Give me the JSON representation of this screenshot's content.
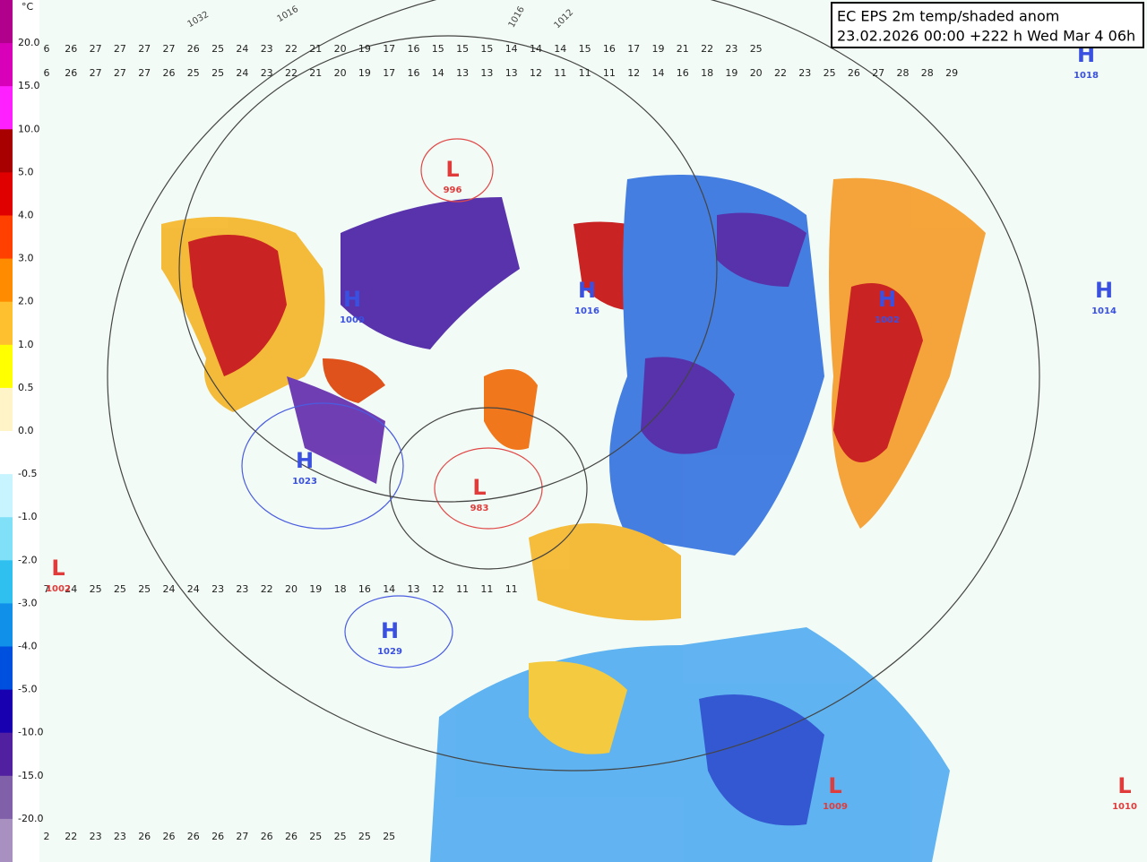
{
  "legend": {
    "unit": "°C",
    "labels": [
      "20.0",
      "15.0",
      "10.0",
      "5.0",
      "4.0",
      "3.0",
      "2.0",
      "1.0",
      "0.5",
      "0.0",
      "-0.5",
      "-1.0",
      "-2.0",
      "-3.0",
      "-4.0",
      "-5.0",
      "-10.0",
      "-15.0",
      "-20.0"
    ]
  },
  "header": {
    "title": "EC EPS 2m temp/shaded anom",
    "subtitle": "23.02.2026 00:00 +222 h Wed Mar 4 06h"
  },
  "pressure_centers": [
    {
      "letter": "L",
      "value": "996"
    },
    {
      "letter": "H",
      "value": "1016"
    },
    {
      "letter": "H",
      "value": "1009"
    },
    {
      "letter": "L",
      "value": "983"
    },
    {
      "letter": "H",
      "value": "1023"
    },
    {
      "letter": "H",
      "value": "1029"
    },
    {
      "letter": "L",
      "value": "1010"
    },
    {
      "letter": "L",
      "value": "1009"
    },
    {
      "letter": "H",
      "value": "1018"
    },
    {
      "letter": "H",
      "value": "1014"
    },
    {
      "letter": "L",
      "value": "1002"
    },
    {
      "letter": "H",
      "value": "1002"
    }
  ],
  "isobar_labels": [
    "1032",
    "1016",
    "1016",
    "1012"
  ],
  "temperature_rows": [
    [
      6,
      26,
      27,
      27,
      27,
      27,
      26,
      25,
      24,
      23,
      22,
      21,
      20,
      19,
      17,
      16,
      15,
      15,
      15,
      14,
      14,
      14,
      15,
      16,
      17,
      19,
      21,
      22,
      23,
      25
    ],
    [
      6,
      26,
      27,
      27,
      27,
      26,
      25,
      25,
      24,
      23,
      22,
      21,
      20,
      19,
      17,
      16,
      14,
      13,
      13,
      13,
      12,
      11,
      11,
      11,
      12,
      14,
      16,
      18,
      19,
      20,
      22,
      23,
      25,
      26,
      27,
      28,
      28,
      29
    ],
    [
      7,
      24,
      25,
      25,
      25,
      24,
      24,
      23,
      23,
      22,
      20,
      19,
      18,
      16,
      14,
      13,
      12,
      11,
      11,
      11
    ],
    [
      2,
      22,
      23,
      23,
      26,
      26,
      26,
      26,
      27,
      26,
      26,
      25,
      25,
      25,
      25
    ]
  ]
}
